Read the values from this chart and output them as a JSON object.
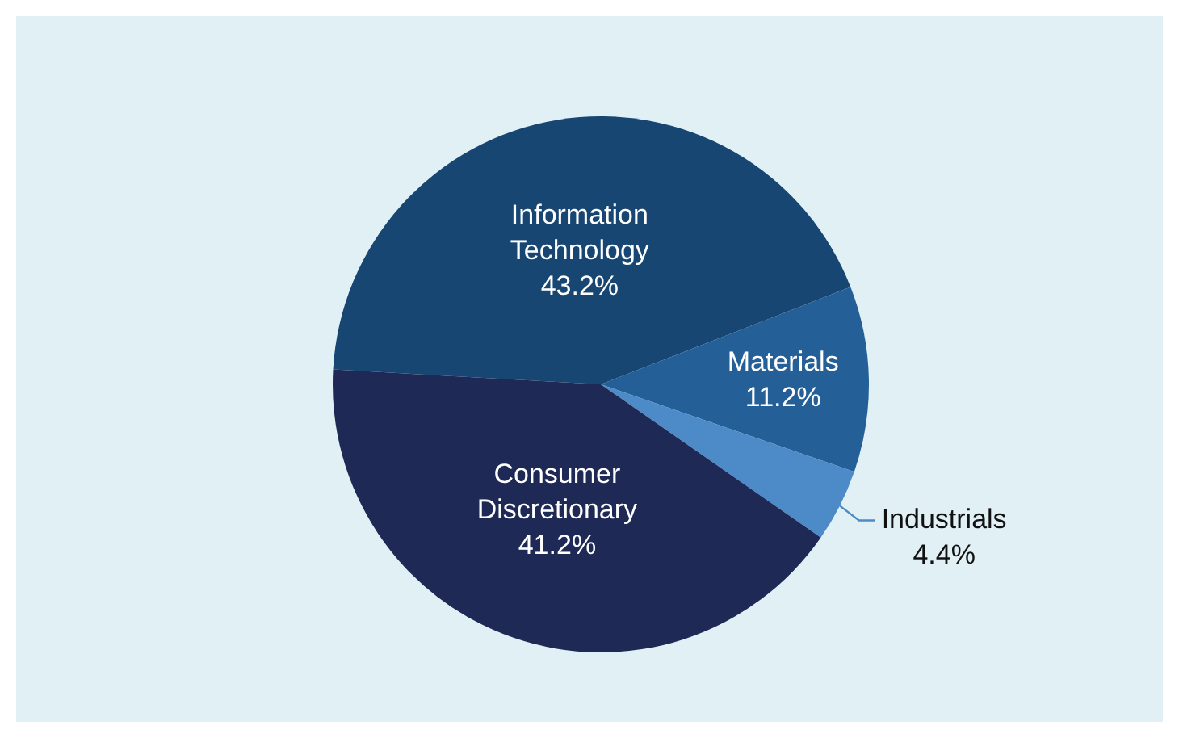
{
  "chart_data": {
    "type": "pie",
    "categories": [
      "Information Technology",
      "Materials",
      "Industrials",
      "Consumer Discretionary"
    ],
    "values": [
      43.2,
      11.2,
      4.4,
      41.2
    ],
    "value_labels": [
      "43.2%",
      "11.2%",
      "4.4%",
      "41.2%"
    ],
    "colors": [
      "#174673",
      "#245f98",
      "#4d8bc8",
      "#1e2955"
    ],
    "legend": false
  }
}
